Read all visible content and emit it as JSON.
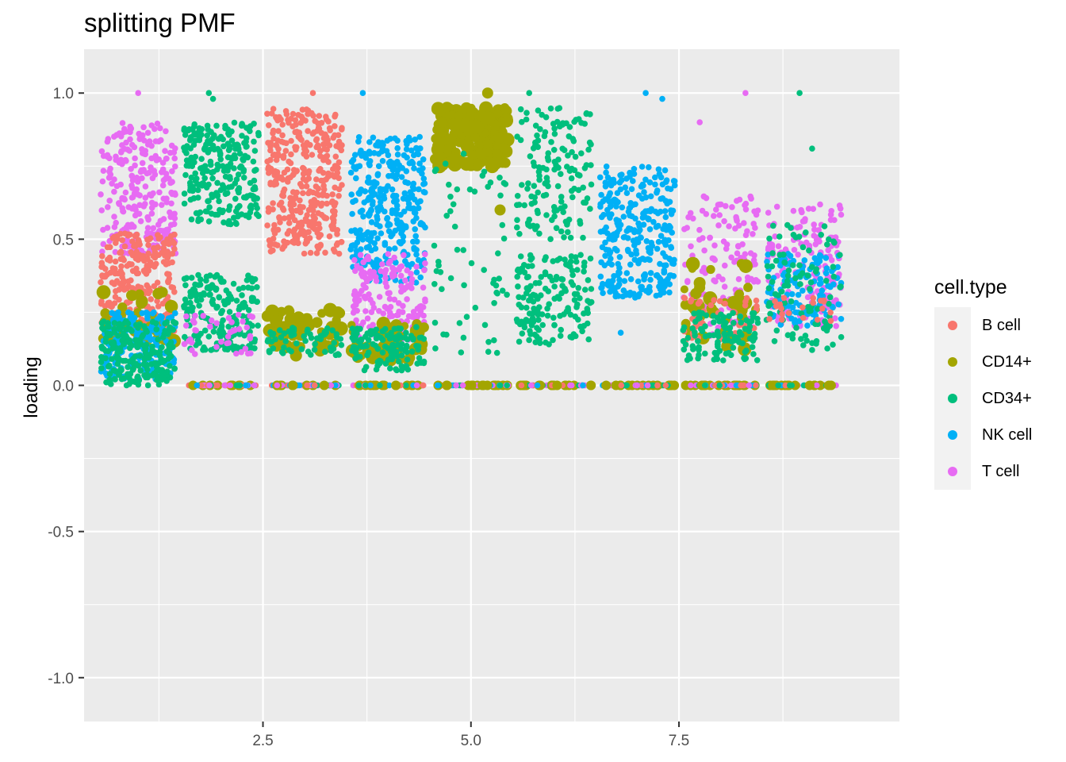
{
  "chart_data": {
    "type": "scatter",
    "title": "splitting PMF",
    "xlabel": "",
    "ylabel": "loading",
    "xlim": [
      0.35,
      10.15
    ],
    "ylim": [
      -1.15,
      1.15
    ],
    "x_ticks": [
      2.5,
      5.0,
      7.5
    ],
    "x_tick_labels": [
      "2.5",
      "5.0",
      "7.5"
    ],
    "y_ticks": [
      -1.0,
      -0.5,
      0.0,
      0.5,
      1.0
    ],
    "y_tick_labels": [
      "-1.0",
      "-0.5",
      "0.0",
      "0.5",
      "1.0"
    ],
    "grid": true,
    "legend_position": "right",
    "legend_title": "cell.type",
    "series": [
      {
        "name": "B cell",
        "color": "#F8766D"
      },
      {
        "name": "CD14+",
        "color": "#A3A500"
      },
      {
        "name": "CD34+",
        "color": "#00BF7D"
      },
      {
        "name": "NK cell",
        "color": "#00B0F6"
      },
      {
        "name": "T cell",
        "color": "#E76BF3"
      }
    ],
    "factors": [
      {
        "x": 1,
        "clusters": [
          {
            "series": "T cell",
            "ymin": 0.45,
            "ymax": 0.9,
            "n": 260
          },
          {
            "series": "B cell",
            "ymin": 0.18,
            "ymax": 0.52,
            "n": 260
          },
          {
            "series": "CD14+",
            "ymin": 0.15,
            "ymax": 0.32,
            "n": 40
          },
          {
            "series": "NK cell",
            "ymin": 0.02,
            "ymax": 0.25,
            "n": 180
          },
          {
            "series": "CD34+",
            "ymin": 0.0,
            "ymax": 0.22,
            "n": 220
          }
        ]
      },
      {
        "x": 2,
        "clusters": [
          {
            "series": "CD34+",
            "ymin": 0.55,
            "ymax": 0.9,
            "n": 260
          },
          {
            "series": "CD34+",
            "ymin": 0.12,
            "ymax": 0.38,
            "n": 200
          },
          {
            "series": "T cell",
            "ymin": 0.1,
            "ymax": 0.25,
            "n": 40
          }
        ]
      },
      {
        "x": 3,
        "clusters": [
          {
            "series": "B cell",
            "ymin": 0.45,
            "ymax": 0.95,
            "n": 360
          },
          {
            "series": "CD14+",
            "ymin": 0.1,
            "ymax": 0.26,
            "n": 60
          },
          {
            "series": "CD34+",
            "ymin": 0.1,
            "ymax": 0.2,
            "n": 60
          }
        ]
      },
      {
        "x": 4,
        "clusters": [
          {
            "series": "NK cell",
            "ymin": 0.35,
            "ymax": 0.85,
            "n": 320
          },
          {
            "series": "T cell",
            "ymin": 0.15,
            "ymax": 0.45,
            "n": 160
          },
          {
            "series": "CD14+",
            "ymin": 0.08,
            "ymax": 0.22,
            "n": 50
          },
          {
            "series": "CD34+",
            "ymin": 0.05,
            "ymax": 0.2,
            "n": 120
          }
        ]
      },
      {
        "x": 5,
        "clusters": [
          {
            "series": "CD14+",
            "ymin": 0.75,
            "ymax": 0.95,
            "n": 200
          },
          {
            "series": "CD34+",
            "ymin": 0.1,
            "ymax": 0.8,
            "n": 60
          }
        ]
      },
      {
        "x": 6,
        "clusters": [
          {
            "series": "CD34+",
            "ymin": 0.5,
            "ymax": 0.95,
            "n": 150
          },
          {
            "series": "CD34+",
            "ymin": 0.14,
            "ymax": 0.45,
            "n": 160
          }
        ]
      },
      {
        "x": 7,
        "clusters": [
          {
            "series": "NK cell",
            "ymin": 0.3,
            "ymax": 0.75,
            "n": 300
          }
        ]
      },
      {
        "x": 8,
        "clusters": [
          {
            "series": "T cell",
            "ymin": 0.15,
            "ymax": 0.65,
            "n": 140
          },
          {
            "series": "CD14+",
            "ymin": 0.12,
            "ymax": 0.42,
            "n": 40
          },
          {
            "series": "B cell",
            "ymin": 0.15,
            "ymax": 0.3,
            "n": 50
          },
          {
            "series": "CD34+",
            "ymin": 0.08,
            "ymax": 0.25,
            "n": 120
          }
        ]
      },
      {
        "x": 9,
        "clusters": [
          {
            "series": "T cell",
            "ymin": 0.2,
            "ymax": 0.62,
            "n": 160
          },
          {
            "series": "NK cell",
            "ymin": 0.2,
            "ymax": 0.45,
            "n": 120
          },
          {
            "series": "CD34+",
            "ymin": 0.12,
            "ymax": 0.55,
            "n": 100
          },
          {
            "series": "B cell",
            "ymin": 0.2,
            "ymax": 0.3,
            "n": 20
          }
        ]
      }
    ],
    "zero_row": {
      "y": 0.0,
      "xmin": 1.6,
      "xmax": 9.4,
      "n": 620
    },
    "outliers": [
      {
        "x": 1.0,
        "y": 1.0,
        "series": "T cell"
      },
      {
        "x": 1.85,
        "y": 1.0,
        "series": "CD34+"
      },
      {
        "x": 1.9,
        "y": 0.98,
        "series": "CD34+"
      },
      {
        "x": 3.1,
        "y": 1.0,
        "series": "B cell"
      },
      {
        "x": 3.7,
        "y": 1.0,
        "series": "NK cell"
      },
      {
        "x": 5.2,
        "y": 1.0,
        "series": "CD14+"
      },
      {
        "x": 5.35,
        "y": 0.6,
        "series": "CD14+"
      },
      {
        "x": 5.7,
        "y": 1.0,
        "series": "CD34+"
      },
      {
        "x": 7.1,
        "y": 1.0,
        "series": "NK cell"
      },
      {
        "x": 7.3,
        "y": 0.98,
        "series": "NK cell"
      },
      {
        "x": 6.8,
        "y": 0.18,
        "series": "NK cell"
      },
      {
        "x": 8.3,
        "y": 1.0,
        "series": "T cell"
      },
      {
        "x": 7.75,
        "y": 0.9,
        "series": "T cell"
      },
      {
        "x": 8.95,
        "y": 1.0,
        "series": "CD34+"
      },
      {
        "x": 9.1,
        "y": 0.81,
        "series": "CD34+"
      }
    ]
  }
}
